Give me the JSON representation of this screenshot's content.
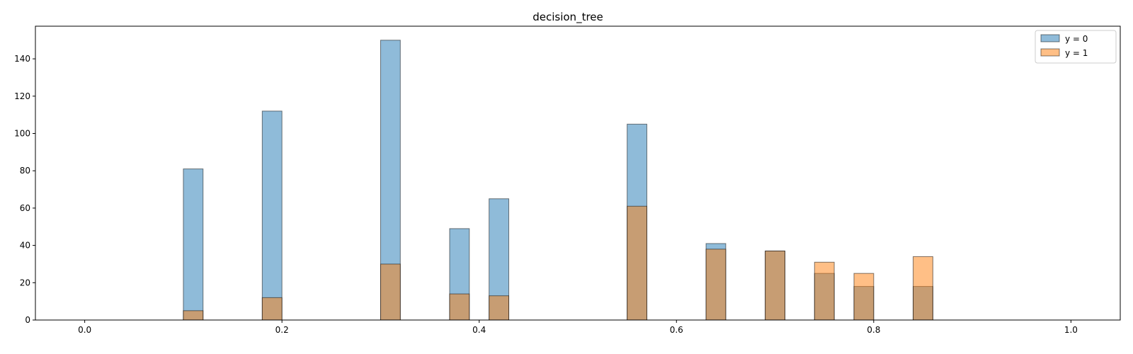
{
  "chart_data": {
    "type": "bar",
    "title": "decision_tree",
    "xlabel": "",
    "ylabel": "",
    "xlim": [
      -0.05,
      1.05
    ],
    "ylim": [
      0,
      157.5
    ],
    "bin_width": 0.02,
    "x_ticks": [
      0.0,
      0.2,
      0.4,
      0.6,
      0.8,
      1.0
    ],
    "x_tick_labels": [
      "0.0",
      "0.2",
      "0.4",
      "0.6",
      "0.8",
      "1.0"
    ],
    "y_ticks": [
      0,
      20,
      40,
      60,
      80,
      100,
      120,
      140
    ],
    "y_tick_labels": [
      "0",
      "20",
      "40",
      "60",
      "80",
      "100",
      "120",
      "140"
    ],
    "grid": false,
    "legend_position": "top-right",
    "series": [
      {
        "name": "y = 0",
        "color": "#1f77b4",
        "bin_starts": [
          0.1,
          0.18,
          0.3,
          0.37,
          0.41,
          0.55,
          0.63,
          0.69,
          0.74,
          0.78,
          0.84
        ],
        "values": [
          81,
          112,
          150,
          49,
          65,
          105,
          41,
          37,
          25,
          18,
          18
        ]
      },
      {
        "name": "y = 1",
        "color": "#ff7f0e",
        "bin_starts": [
          0.1,
          0.18,
          0.3,
          0.37,
          0.41,
          0.55,
          0.63,
          0.69,
          0.74,
          0.78,
          0.84
        ],
        "values": [
          5,
          12,
          30,
          14,
          13,
          61,
          38,
          37,
          31,
          25,
          34
        ]
      }
    ]
  }
}
